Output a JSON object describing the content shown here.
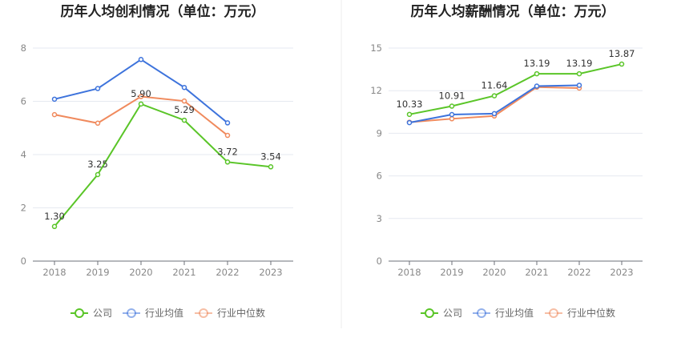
{
  "chart_data": [
    {
      "type": "line",
      "title": "历年人均创利情况（单位：万元）",
      "categories": [
        "2018",
        "2019",
        "2020",
        "2021",
        "2022",
        "2023"
      ],
      "ylim": [
        0,
        8
      ],
      "yticks": [
        "0",
        "2",
        "4",
        "6",
        "8"
      ],
      "grid": true,
      "legend_position": "bottom",
      "series": [
        {
          "name": "公司",
          "color": "#5ac528",
          "values": [
            1.3,
            3.25,
            5.9,
            5.29,
            3.72,
            3.54
          ],
          "labels": [
            "1.30",
            "3.25",
            "5.90",
            "5.29",
            "3.72",
            "3.54"
          ]
        },
        {
          "name": "行业均值",
          "color": "#3d73dc",
          "values": [
            6.08,
            6.48,
            7.57,
            6.52,
            5.19,
            null
          ]
        },
        {
          "name": "行业中位数",
          "color": "#f08a5d",
          "values": [
            5.5,
            5.18,
            6.18,
            6.01,
            4.72,
            null
          ]
        }
      ]
    },
    {
      "type": "line",
      "title": "历年人均薪酬情况（单位：万元）",
      "categories": [
        "2018",
        "2019",
        "2020",
        "2021",
        "2022",
        "2023"
      ],
      "ylim": [
        0,
        15
      ],
      "yticks": [
        "0",
        "3",
        "6",
        "9",
        "12",
        "15"
      ],
      "grid": true,
      "legend_position": "bottom",
      "series": [
        {
          "name": "公司",
          "color": "#5ac528",
          "values": [
            10.33,
            10.91,
            11.64,
            13.19,
            13.19,
            13.87
          ],
          "labels": [
            "10.33",
            "10.91",
            "11.64",
            "13.19",
            "13.19",
            "13.87"
          ]
        },
        {
          "name": "行业均值",
          "color": "#3d73dc",
          "values": [
            9.75,
            10.32,
            10.38,
            12.32,
            12.38,
            null
          ]
        },
        {
          "name": "行业中位数",
          "color": "#f08a5d",
          "values": [
            9.78,
            10.02,
            10.22,
            12.25,
            12.18,
            null
          ]
        }
      ]
    }
  ]
}
